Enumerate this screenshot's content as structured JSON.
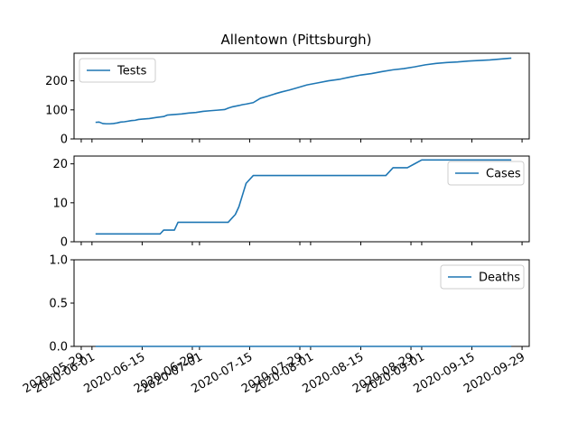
{
  "chart_data": {
    "type": "line",
    "title": "Allentown (Pittsburgh)",
    "color": "#1f77b4",
    "shared_x": true,
    "x_ticks": [
      "2020-05-29",
      "2020-06-01",
      "2020-06-15",
      "2020-06-29",
      "2020-07-01",
      "2020-07-15",
      "2020-07-29",
      "2020-08-01",
      "2020-08-15",
      "2020-08-29",
      "2020-09-01",
      "2020-09-15",
      "2020-09-29"
    ],
    "xlim": [
      "2020-05-27",
      "2020-10-01"
    ],
    "panels": [
      {
        "name": "Tests",
        "ylim": [
          0,
          295
        ],
        "y_ticks": [
          0,
          100,
          200
        ],
        "legend": "top-left",
        "x": [
          "2020-06-02",
          "2020-06-03",
          "2020-06-04",
          "2020-06-05",
          "2020-06-06",
          "2020-06-07",
          "2020-06-08",
          "2020-06-09",
          "2020-06-10",
          "2020-06-11",
          "2020-06-12",
          "2020-06-13",
          "2020-06-14",
          "2020-06-15",
          "2020-06-17",
          "2020-06-19",
          "2020-06-21",
          "2020-06-22",
          "2020-06-24",
          "2020-06-26",
          "2020-06-28",
          "2020-06-30",
          "2020-07-01",
          "2020-07-02",
          "2020-07-04",
          "2020-07-06",
          "2020-07-08",
          "2020-07-09",
          "2020-07-10",
          "2020-07-12",
          "2020-07-13",
          "2020-07-14",
          "2020-07-16",
          "2020-07-18",
          "2020-07-20",
          "2020-07-22",
          "2020-07-24",
          "2020-07-26",
          "2020-07-28",
          "2020-07-31",
          "2020-08-03",
          "2020-08-06",
          "2020-08-09",
          "2020-08-12",
          "2020-08-15",
          "2020-08-18",
          "2020-08-21",
          "2020-08-24",
          "2020-08-27",
          "2020-08-30",
          "2020-09-02",
          "2020-09-05",
          "2020-09-08",
          "2020-09-11",
          "2020-09-14",
          "2020-09-17",
          "2020-09-20",
          "2020-09-23",
          "2020-09-26"
        ],
        "values": [
          57,
          58,
          53,
          52,
          52,
          53,
          55,
          58,
          59,
          61,
          63,
          64,
          67,
          68,
          70,
          74,
          77,
          82,
          84,
          86,
          89,
          91,
          93,
          95,
          97,
          99,
          101,
          106,
          110,
          115,
          118,
          120,
          125,
          140,
          147,
          155,
          162,
          168,
          175,
          186,
          193,
          200,
          205,
          213,
          220,
          225,
          232,
          238,
          242,
          248,
          255,
          260,
          263,
          265,
          268,
          270,
          272,
          275,
          278
        ]
      },
      {
        "name": "Cases",
        "ylim": [
          0,
          22
        ],
        "y_ticks": [
          0,
          10,
          20
        ],
        "legend": "top-right",
        "x": [
          "2020-06-02",
          "2020-06-20",
          "2020-06-21",
          "2020-06-24",
          "2020-06-25",
          "2020-07-09",
          "2020-07-10",
          "2020-07-11",
          "2020-07-12",
          "2020-07-13",
          "2020-07-14",
          "2020-07-16",
          "2020-08-22",
          "2020-08-24",
          "2020-08-28",
          "2020-08-30",
          "2020-09-01",
          "2020-09-26"
        ],
        "values": [
          2,
          2,
          3,
          3,
          5,
          5,
          6,
          7,
          9,
          12,
          15,
          17,
          17,
          19,
          19,
          20,
          21,
          21
        ]
      },
      {
        "name": "Deaths",
        "ylim": [
          0,
          1.0
        ],
        "y_ticks": [
          0.0,
          0.5,
          1.0
        ],
        "legend": "top-right",
        "x": [
          "2020-06-02",
          "2020-09-26"
        ],
        "values": [
          0,
          0
        ]
      }
    ]
  }
}
